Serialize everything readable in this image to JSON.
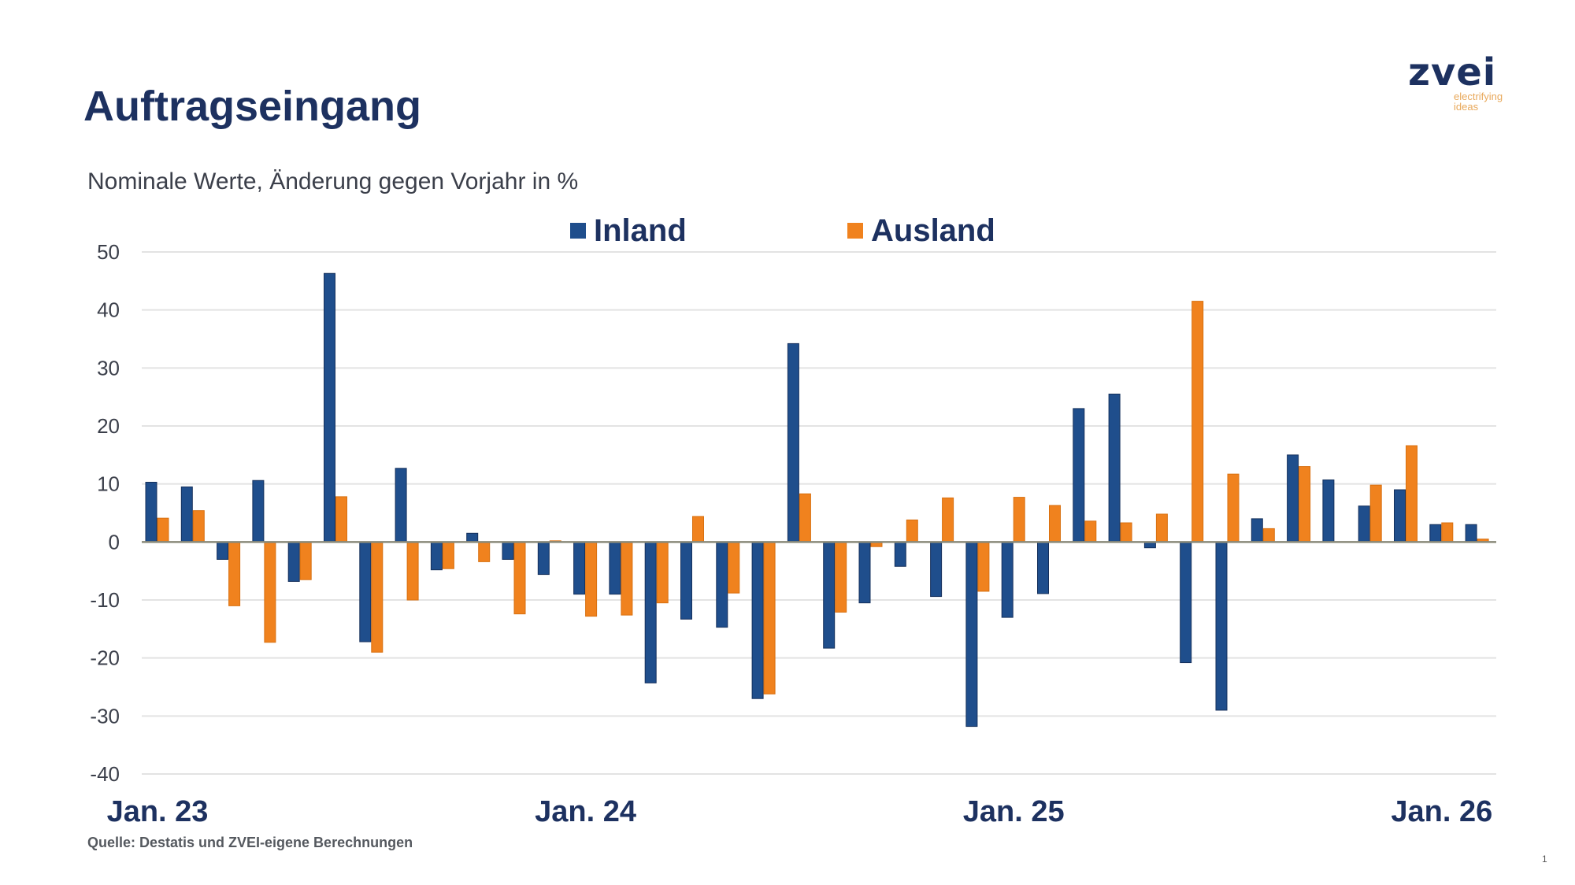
{
  "page": {
    "title": "Auftragseingang",
    "subtitle": "Nominale Werte, Änderung gegen Vorjahr in %",
    "logo": {
      "word": "zvei",
      "tagline_line1": "electrifying",
      "tagline_line2": "ideas"
    },
    "source": "Quelle: Destatis und ZVEI-eigene Berechnungen",
    "page_number": "1"
  },
  "colors": {
    "inland": "#1f4e8c",
    "ausland": "#f0821e",
    "title": "#1d3160",
    "grid": "#e3e3e3",
    "axis": "#8a8a7a"
  },
  "chart_data": {
    "type": "bar",
    "title": "Auftragseingang",
    "subtitle": "Nominale Werte, Änderung gegen Vorjahr in %",
    "xlabel": "",
    "ylabel": "",
    "ylim": [
      -40,
      50
    ],
    "yticks": [
      50,
      40,
      30,
      20,
      10,
      0,
      -10,
      -20,
      -30,
      -40
    ],
    "ytick_labels": [
      "50",
      "40",
      "30",
      "20",
      "10",
      "0",
      "-10",
      "-20",
      "-30",
      "-40"
    ],
    "grid": true,
    "legend": {
      "placement": "top-center",
      "entries": [
        "Inland",
        "Ausland"
      ]
    },
    "categories": [
      "Jan 23",
      "Feb 23",
      "Mär 23",
      "Apr 23",
      "Mai 23",
      "Jun 23",
      "Jul 23",
      "Aug 23",
      "Sep 23",
      "Okt 23",
      "Nov 23",
      "Dez 23",
      "Jan 24",
      "Feb 24",
      "Mär 24",
      "Apr 24",
      "Mai 24",
      "Jun 24",
      "Jul 24",
      "Aug 24",
      "Sep 24",
      "Okt 24",
      "Nov 24",
      "Dez 24",
      "Jan 25",
      "Feb 25",
      "Mär 25",
      "Apr 25",
      "Mai 25",
      "Jun 25",
      "Jul 25",
      "Aug 25",
      "Sep 25",
      "Okt 25",
      "Nov 25",
      "Dez 25",
      "Jan 26",
      "Feb 26"
    ],
    "xtick_labels": [
      {
        "index": 0,
        "label": "Jan. 23"
      },
      {
        "index": 12,
        "label": "Jan. 24"
      },
      {
        "index": 24,
        "label": "Jan. 25"
      },
      {
        "index": 36,
        "label": "Jan. 26"
      }
    ],
    "series": [
      {
        "name": "Inland",
        "color": "#1f4e8c",
        "values": [
          10.3,
          9.5,
          -3.0,
          10.6,
          -6.8,
          46.3,
          -17.2,
          12.7,
          -4.8,
          1.5,
          -3.0,
          -5.6,
          -9.0,
          -9.0,
          -24.3,
          -13.3,
          -14.7,
          -27.0,
          34.2,
          -18.3,
          -10.5,
          -4.2,
          -9.4,
          -31.8,
          -13.0,
          -8.9,
          23.0,
          25.5,
          -1.0,
          -20.8,
          -29.0,
          4.0,
          15.0,
          10.7,
          6.2,
          9.0,
          3.0,
          3.0
        ]
      },
      {
        "name": "Ausland",
        "color": "#f0821e",
        "values": [
          4.1,
          5.4,
          -11.0,
          -17.3,
          -6.5,
          7.8,
          -19.0,
          -10.0,
          -4.6,
          -3.4,
          -12.4,
          0.2,
          -12.8,
          -12.6,
          -10.5,
          4.4,
          -8.8,
          -26.2,
          8.3,
          -12.1,
          -0.8,
          3.8,
          7.6,
          -8.5,
          7.7,
          6.3,
          3.6,
          3.3,
          4.8,
          41.5,
          11.7,
          2.3,
          13.0,
          0.0,
          9.8,
          16.6,
          3.3,
          0.5
        ]
      }
    ]
  }
}
